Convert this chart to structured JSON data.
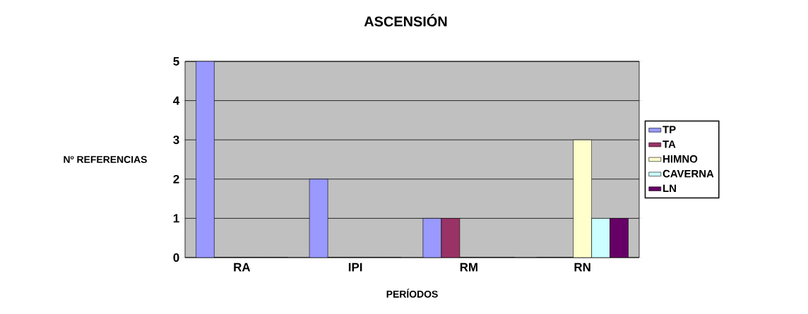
{
  "chart_data": {
    "type": "bar",
    "title": "ASCENSIÓN",
    "xlabel": "PERÍODOS",
    "ylabel": "Nº REFERENCIAS",
    "categories": [
      "RA",
      "IPI",
      "RM",
      "RN"
    ],
    "series": [
      {
        "name": "TP",
        "color": "#9999ff",
        "values": [
          5,
          2,
          1,
          0
        ]
      },
      {
        "name": "TA",
        "color": "#993366",
        "values": [
          0,
          0,
          1,
          0
        ]
      },
      {
        "name": "HIMNO",
        "color": "#ffffcc",
        "values": [
          0,
          0,
          0,
          3
        ]
      },
      {
        "name": "CAVERNA",
        "color": "#ccffff",
        "values": [
          0,
          0,
          0,
          1
        ]
      },
      {
        "name": "LN",
        "color": "#660066",
        "values": [
          0,
          0,
          0,
          1
        ]
      }
    ],
    "ylim": [
      0,
      5
    ],
    "yticks": [
      0,
      1,
      2,
      3,
      4,
      5
    ],
    "grid": "y",
    "legend": "right"
  }
}
